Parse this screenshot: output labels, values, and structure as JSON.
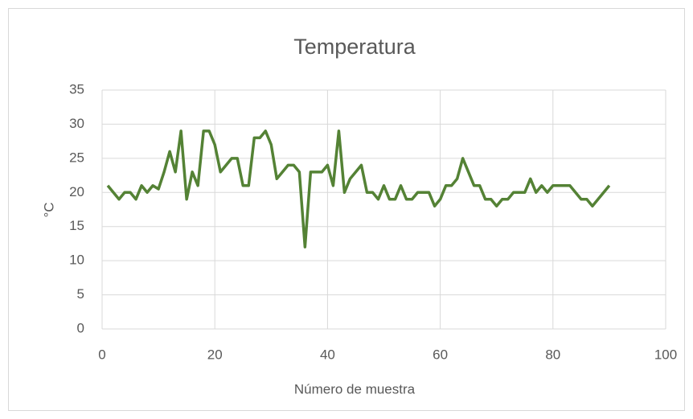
{
  "chart_data": {
    "type": "line",
    "title": "Temperatura",
    "x_label": "Número de muestra",
    "y_label": "°C",
    "x": [
      1,
      2,
      3,
      4,
      5,
      6,
      7,
      8,
      9,
      10,
      11,
      12,
      13,
      14,
      15,
      16,
      17,
      18,
      19,
      20,
      21,
      22,
      23,
      24,
      25,
      26,
      27,
      28,
      29,
      30,
      31,
      32,
      33,
      34,
      35,
      36,
      37,
      38,
      39,
      40,
      41,
      42,
      43,
      44,
      45,
      46,
      47,
      48,
      49,
      50,
      51,
      52,
      53,
      54,
      55,
      56,
      57,
      58,
      59,
      60,
      61,
      62,
      63,
      64,
      65,
      66,
      67,
      68,
      69,
      70,
      71,
      72,
      73,
      74,
      75,
      76,
      77,
      78,
      79,
      80,
      81,
      82,
      83,
      84,
      85,
      86,
      87,
      88,
      89,
      90
    ],
    "series": [
      {
        "name": "Temperatura",
        "color": "#548235",
        "values": [
          21,
          20,
          19,
          20,
          20,
          19,
          21,
          20,
          21,
          20.5,
          23,
          26,
          23,
          29,
          19,
          23,
          21,
          29,
          29,
          27,
          23,
          24,
          25,
          25,
          21,
          21,
          28,
          28,
          29,
          27,
          22,
          23,
          24,
          24,
          23,
          12,
          23,
          23,
          23,
          24,
          21,
          29,
          20,
          22,
          23,
          24,
          20,
          20,
          19,
          21,
          19,
          19,
          21,
          19,
          19,
          20,
          20,
          20,
          18,
          19,
          21,
          21,
          22,
          25,
          23,
          21,
          21,
          19,
          19,
          18,
          19,
          19,
          20,
          20,
          20,
          22,
          20,
          21,
          20,
          21,
          21,
          21,
          21,
          20,
          19,
          19,
          18,
          19,
          20,
          21
        ]
      }
    ],
    "xlim": [
      0,
      100
    ],
    "xticks": [
      0,
      20,
      40,
      60,
      80,
      100
    ],
    "ylim": [
      0,
      35
    ],
    "yticks": [
      0,
      5,
      10,
      15,
      20,
      25,
      30,
      35
    ],
    "grid": true
  }
}
